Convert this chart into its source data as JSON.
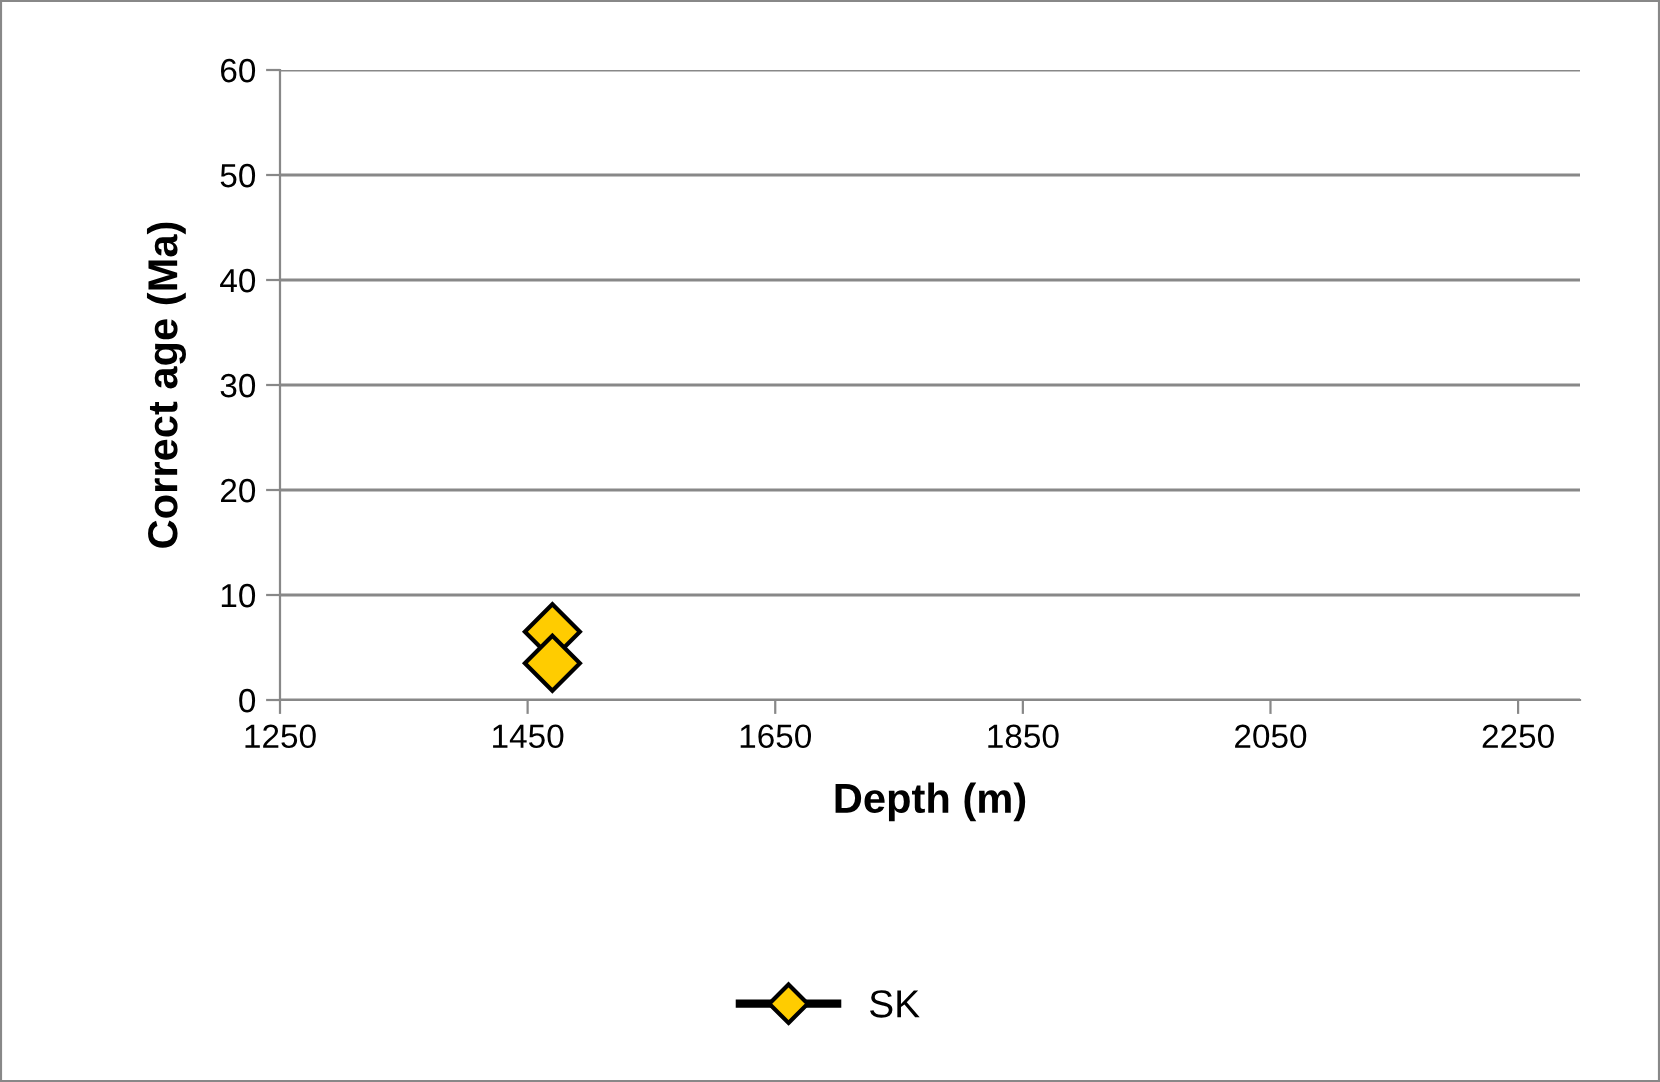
{
  "chart_data": {
    "type": "scatter",
    "xlabel": "Depth (m)",
    "ylabel": "Correct age (Ma)",
    "series": [
      {
        "name": "SK",
        "color": "#ffcc00",
        "x": [
          1470,
          1470
        ],
        "values": [
          6.5,
          3.5
        ]
      }
    ],
    "xlim": [
      1250,
      2300
    ],
    "xticks": [
      1250,
      1450,
      1650,
      1850,
      2050,
      2250
    ],
    "ylim": [
      0,
      60
    ],
    "yticks": [
      0,
      10,
      20,
      30,
      40,
      50,
      60
    ],
    "grid": "y",
    "legend": "bottom",
    "marker": "diamond",
    "line_style": "solid"
  }
}
